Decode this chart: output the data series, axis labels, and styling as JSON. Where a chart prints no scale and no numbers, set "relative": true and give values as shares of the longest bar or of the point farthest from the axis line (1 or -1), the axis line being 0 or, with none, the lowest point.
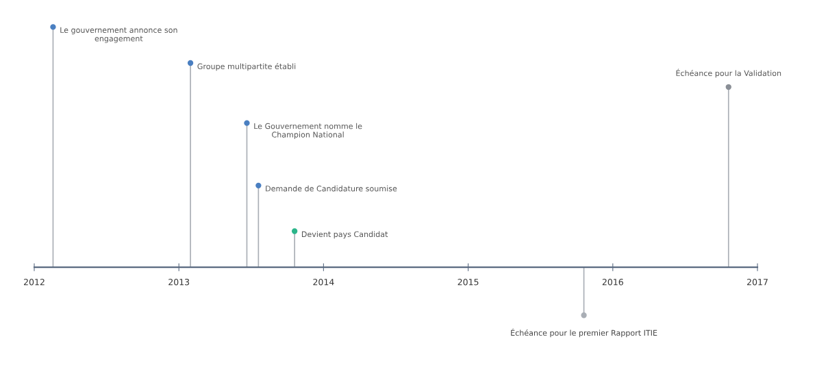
{
  "chart_data": {
    "type": "lollipop",
    "relative": true,
    "xlim": [
      2012,
      2017
    ],
    "xticks": [
      2012,
      2013,
      2014,
      2015,
      2016,
      2017
    ],
    "grid": false,
    "legend": false,
    "tick_labels": "x",
    "series": [
      {
        "x": [
          2012.13,
          2013.08,
          2013.47,
          2013.55,
          2013.8,
          2016.8
        ],
        "values": [
          1,
          0.85,
          0.6,
          0.34,
          0.15,
          0.75
        ],
        "colors": [
          "#4a7fc1",
          "#4a7fc1",
          "#4a7fc1",
          "#4a7fc1",
          "#2bb58a",
          "#8a8f96"
        ],
        "marker": "circle"
      },
      {
        "x": [
          2015.8
        ],
        "values": [
          -0.2
        ],
        "colors": [
          "#a9aeb5"
        ],
        "marker": "circle"
      }
    ],
    "annotations": [
      {
        "text": "Le gouvernement annonce son\nengagement",
        "x": 2012.13,
        "y": 1
      },
      {
        "text": "Groupe multipartite établi",
        "x": 2013.08,
        "y": 0.85
      },
      {
        "text": "Le Gouvernement nomme le\nChampion National",
        "x": 2013.47,
        "y": 0.6
      },
      {
        "text": "Demande de Candidature soumise",
        "x": 2013.55,
        "y": 0.34
      },
      {
        "text": "Devient pays Candidat",
        "x": 2013.8,
        "y": 0.15
      },
      {
        "text": "Échéance pour la Validation",
        "x": 2016.8,
        "y": 0.75
      },
      {
        "text": "Échéance pour le premier Rapport ITIE",
        "x": 2015.8,
        "y": -0.2
      }
    ]
  }
}
